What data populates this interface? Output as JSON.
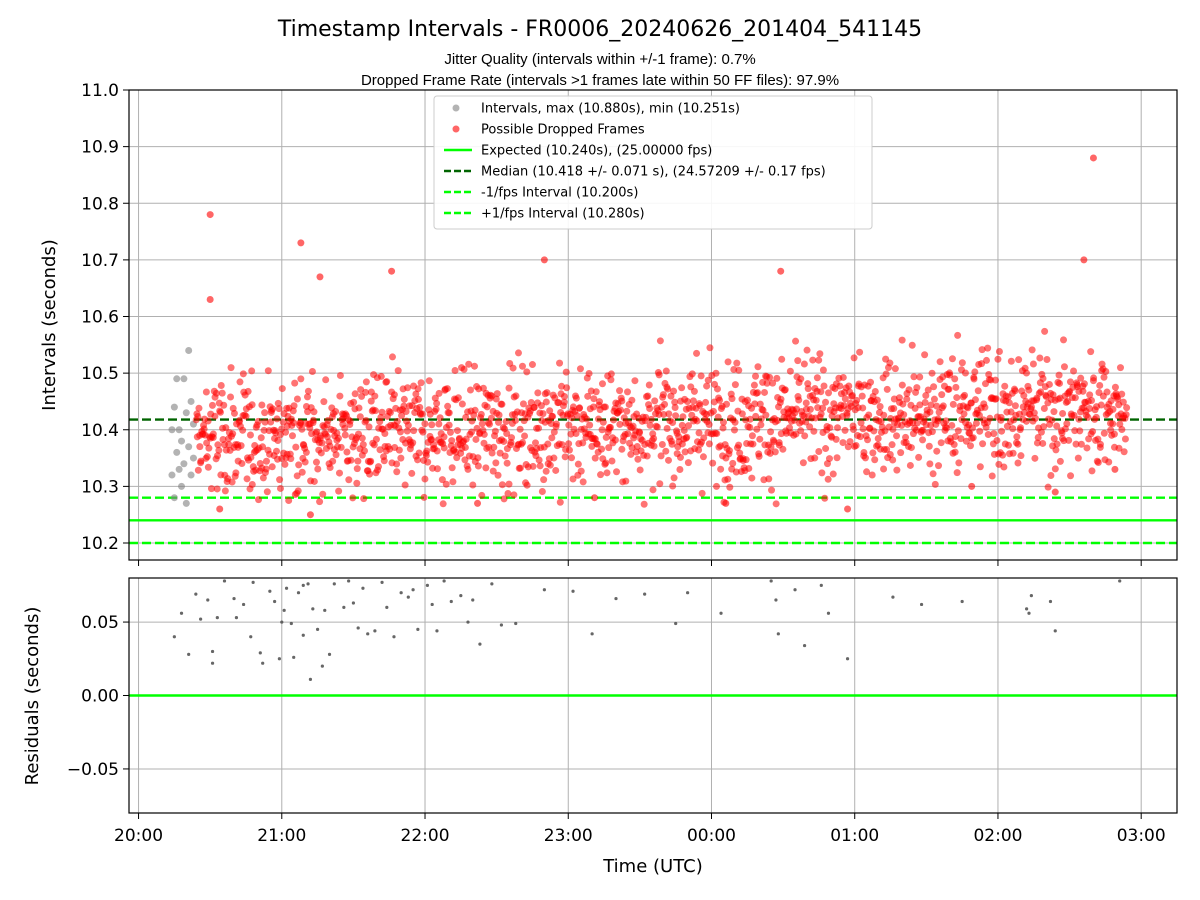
{
  "title": "Timestamp Intervals - FR0006_20240626_201404_541145",
  "subtitle_lines": [
    "Jitter Quality (intervals within +/-1 frame): 0.7%",
    "Dropped Frame Rate (intervals >1 frames late within 50 FF files): 97.9%"
  ],
  "colors": {
    "intervals": "#808080",
    "dropped": "#ff0000",
    "expected": "#00ff00",
    "median": "#006400",
    "interval_bounds": "#00ff00",
    "residuals": "#555555",
    "grid": "#b0b0b0"
  },
  "chart_data": [
    {
      "type": "scatter",
      "panel": "top",
      "xlabel": "",
      "ylabel": "Intervals (seconds)",
      "x_ticks": [
        "20:00",
        "21:00",
        "22:00",
        "23:00",
        "00:00",
        "01:00",
        "02:00",
        "03:00"
      ],
      "xlim": [
        "2024-06-26T19:56",
        "2024-06-27T03:15"
      ],
      "y_ticks": [
        "10.2",
        "10.3",
        "10.4",
        "10.5",
        "10.6",
        "10.7",
        "10.8",
        "10.9",
        "11.0"
      ],
      "ylim": [
        10.17,
        11.0
      ],
      "grid": true,
      "legend_position": "top-center",
      "legend": [
        {
          "label": "Intervals, max (10.880s), min (10.251s)",
          "kind": "marker",
          "color_key": "intervals"
        },
        {
          "label": "Possible Dropped Frames",
          "kind": "marker",
          "color_key": "dropped"
        },
        {
          "label": "Expected (10.240s), (25.00000 fps)",
          "kind": "solid",
          "color_key": "expected"
        },
        {
          "label": "Median (10.418 +/- 0.071 s), (24.57209 +/- 0.17 fps)",
          "kind": "dashed",
          "color_key": "median"
        },
        {
          "label": "-1/fps Interval (10.200s)",
          "kind": "dashed",
          "color_key": "interval_bounds"
        },
        {
          "label": "+1/fps Interval (10.280s)",
          "kind": "dashed",
          "color_key": "interval_bounds"
        }
      ],
      "reference_lines": [
        {
          "name": "Expected",
          "y": 10.24,
          "style": "solid",
          "color_key": "expected"
        },
        {
          "name": "Median",
          "y": 10.418,
          "style": "dashed",
          "color_key": "median"
        },
        {
          "name": "-1/fps Interval",
          "y": 10.2,
          "style": "dashed",
          "color_key": "interval_bounds"
        },
        {
          "name": "+1/fps Interval",
          "y": 10.28,
          "style": "dashed",
          "color_key": "interval_bounds"
        }
      ],
      "series": [
        {
          "name": "Intervals",
          "color_key": "intervals",
          "points": [
            [
              "2024-06-26T20:14",
              10.32
            ],
            [
              "2024-06-26T20:14",
              10.4
            ],
            [
              "2024-06-26T20:15",
              10.28
            ],
            [
              "2024-06-26T20:15",
              10.44
            ],
            [
              "2024-06-26T20:16",
              10.36
            ],
            [
              "2024-06-26T20:16",
              10.49
            ],
            [
              "2024-06-26T20:17",
              10.33
            ],
            [
              "2024-06-26T20:17",
              10.4
            ],
            [
              "2024-06-26T20:18",
              10.3
            ],
            [
              "2024-06-26T20:18",
              10.38
            ],
            [
              "2024-06-26T20:19",
              10.49
            ],
            [
              "2024-06-26T20:19",
              10.34
            ],
            [
              "2024-06-26T20:20",
              10.43
            ],
            [
              "2024-06-26T20:20",
              10.27
            ],
            [
              "2024-06-26T20:21",
              10.37
            ],
            [
              "2024-06-26T20:21",
              10.54
            ],
            [
              "2024-06-26T20:22",
              10.32
            ],
            [
              "2024-06-26T20:22",
              10.45
            ],
            [
              "2024-06-26T20:23",
              10.35
            ],
            [
              "2024-06-26T20:23",
              10.41
            ]
          ]
        },
        {
          "name": "Possible Dropped Frames",
          "color_key": "dropped",
          "n_points": 1650,
          "median": 10.418,
          "spread": 0.071,
          "x_range": [
            "2024-06-26T20:24",
            "2024-06-27T02:54"
          ],
          "points": [
            [
              "2024-06-26T20:30",
              10.78
            ],
            [
              "2024-06-26T20:30",
              10.63
            ],
            [
              "2024-06-26T21:08",
              10.73
            ],
            [
              "2024-06-26T21:16",
              10.67
            ],
            [
              "2024-06-26T21:46",
              10.68
            ],
            [
              "2024-06-26T22:50",
              10.7
            ],
            [
              "2024-06-27T00:29",
              10.68
            ],
            [
              "2024-06-27T02:36",
              10.7
            ],
            [
              "2024-06-27T02:40",
              10.88
            ],
            [
              "2024-06-26T21:12",
              10.25
            ],
            [
              "2024-06-27T00:57",
              10.26
            ],
            [
              "2024-06-26T20:34",
              10.26
            ],
            [
              "2024-06-26T22:22",
              10.27
            ],
            [
              "2024-06-26T23:11",
              10.28
            ],
            [
              "2024-06-27T00:06",
              10.27
            ],
            [
              "2024-06-27T01:49",
              10.3
            ],
            [
              "2024-06-27T02:24",
              10.29
            ],
            [
              "2024-06-27T02:49",
              10.33
            ]
          ]
        }
      ]
    },
    {
      "type": "scatter",
      "panel": "bottom",
      "xlabel": "Time (UTC)",
      "ylabel": "Residuals (seconds)",
      "x_ticks": [
        "20:00",
        "21:00",
        "22:00",
        "23:00",
        "00:00",
        "01:00",
        "02:00",
        "03:00"
      ],
      "xlim": [
        "2024-06-26T19:56",
        "2024-06-27T03:15"
      ],
      "y_ticks": [
        "−0.05",
        "0.00",
        "0.05"
      ],
      "ylim": [
        -0.08,
        0.08
      ],
      "grid": true,
      "reference_lines": [
        {
          "name": "Zero residual",
          "y": 0.0,
          "style": "solid",
          "color_key": "expected"
        }
      ],
      "series": [
        {
          "name": "",
          "color_key": "residuals",
          "points": [
            [
              "2024-06-26T20:15",
              0.04
            ],
            [
              "2024-06-26T20:18",
              0.056
            ],
            [
              "2024-06-26T20:21",
              0.028
            ],
            [
              "2024-06-26T20:24",
              0.069
            ],
            [
              "2024-06-26T20:26",
              0.052
            ],
            [
              "2024-06-26T20:29",
              0.065
            ],
            [
              "2024-06-26T20:31",
              0.022
            ],
            [
              "2024-06-26T20:31",
              0.03
            ],
            [
              "2024-06-26T20:33",
              0.053
            ],
            [
              "2024-06-26T20:36",
              0.078
            ],
            [
              "2024-06-26T20:40",
              0.066
            ],
            [
              "2024-06-26T20:41",
              0.053
            ],
            [
              "2024-06-26T20:44",
              0.062
            ],
            [
              "2024-06-26T20:47",
              0.04
            ],
            [
              "2024-06-26T20:48",
              0.077
            ],
            [
              "2024-06-26T20:51",
              0.029
            ],
            [
              "2024-06-26T20:52",
              0.022
            ],
            [
              "2024-06-26T20:55",
              0.071
            ],
            [
              "2024-06-26T20:57",
              0.064
            ],
            [
              "2024-06-26T20:59",
              0.025
            ],
            [
              "2024-06-26T21:00",
              0.05
            ],
            [
              "2024-06-26T21:01",
              0.058
            ],
            [
              "2024-06-26T21:02",
              0.073
            ],
            [
              "2024-06-26T21:04",
              0.049
            ],
            [
              "2024-06-26T21:05",
              0.026
            ],
            [
              "2024-06-26T21:07",
              0.07
            ],
            [
              "2024-06-26T21:09",
              0.041
            ],
            [
              "2024-06-26T21:09",
              0.075
            ],
            [
              "2024-06-26T21:11",
              0.076
            ],
            [
              "2024-06-26T21:12",
              0.011
            ],
            [
              "2024-06-26T21:13",
              0.059
            ],
            [
              "2024-06-26T21:15",
              0.045
            ],
            [
              "2024-06-26T21:17",
              0.02
            ],
            [
              "2024-06-26T21:18",
              0.058
            ],
            [
              "2024-06-26T21:20",
              0.028
            ],
            [
              "2024-06-26T21:22",
              0.076
            ],
            [
              "2024-06-26T21:26",
              0.06
            ],
            [
              "2024-06-26T21:28",
              0.078
            ],
            [
              "2024-06-26T21:30",
              0.063
            ],
            [
              "2024-06-26T21:32",
              0.046
            ],
            [
              "2024-06-26T21:34",
              0.073
            ],
            [
              "2024-06-26T21:36",
              0.042
            ],
            [
              "2024-06-26T21:39",
              0.044
            ],
            [
              "2024-06-26T21:42",
              0.077
            ],
            [
              "2024-06-26T21:44",
              0.06
            ],
            [
              "2024-06-26T21:47",
              0.04
            ],
            [
              "2024-06-26T21:50",
              0.07
            ],
            [
              "2024-06-26T21:53",
              0.067
            ],
            [
              "2024-06-26T21:55",
              0.072
            ],
            [
              "2024-06-26T21:57",
              0.045
            ],
            [
              "2024-06-26T22:01",
              0.075
            ],
            [
              "2024-06-26T22:03",
              0.062
            ],
            [
              "2024-06-26T22:05",
              0.044
            ],
            [
              "2024-06-26T22:08",
              0.078
            ],
            [
              "2024-06-26T22:11",
              0.064
            ],
            [
              "2024-06-26T22:15",
              0.068
            ],
            [
              "2024-06-26T22:18",
              0.05
            ],
            [
              "2024-06-26T22:20",
              0.065
            ],
            [
              "2024-06-26T22:23",
              0.035
            ],
            [
              "2024-06-26T22:28",
              0.076
            ],
            [
              "2024-06-26T22:32",
              0.048
            ],
            [
              "2024-06-26T22:38",
              0.049
            ],
            [
              "2024-06-26T22:50",
              0.072
            ],
            [
              "2024-06-26T23:02",
              0.071
            ],
            [
              "2024-06-26T23:10",
              0.042
            ],
            [
              "2024-06-26T23:20",
              0.066
            ],
            [
              "2024-06-26T23:32",
              0.069
            ],
            [
              "2024-06-26T23:45",
              0.049
            ],
            [
              "2024-06-26T23:50",
              0.07
            ],
            [
              "2024-06-27T00:04",
              0.056
            ],
            [
              "2024-06-27T00:25",
              0.078
            ],
            [
              "2024-06-27T00:27",
              0.065
            ],
            [
              "2024-06-27T00:28",
              0.042
            ],
            [
              "2024-06-27T00:35",
              0.072
            ],
            [
              "2024-06-27T00:39",
              0.034
            ],
            [
              "2024-06-27T00:46",
              0.075
            ],
            [
              "2024-06-27T00:49",
              0.056
            ],
            [
              "2024-06-27T00:57",
              0.025
            ],
            [
              "2024-06-27T01:16",
              0.067
            ],
            [
              "2024-06-27T01:28",
              0.062
            ],
            [
              "2024-06-27T01:45",
              0.064
            ],
            [
              "2024-06-27T02:12",
              0.059
            ],
            [
              "2024-06-27T02:13",
              0.056
            ],
            [
              "2024-06-27T02:14",
              0.068
            ],
            [
              "2024-06-27T02:22",
              0.064
            ],
            [
              "2024-06-27T02:24",
              0.044
            ],
            [
              "2024-06-27T02:51",
              0.078
            ]
          ]
        }
      ]
    }
  ]
}
